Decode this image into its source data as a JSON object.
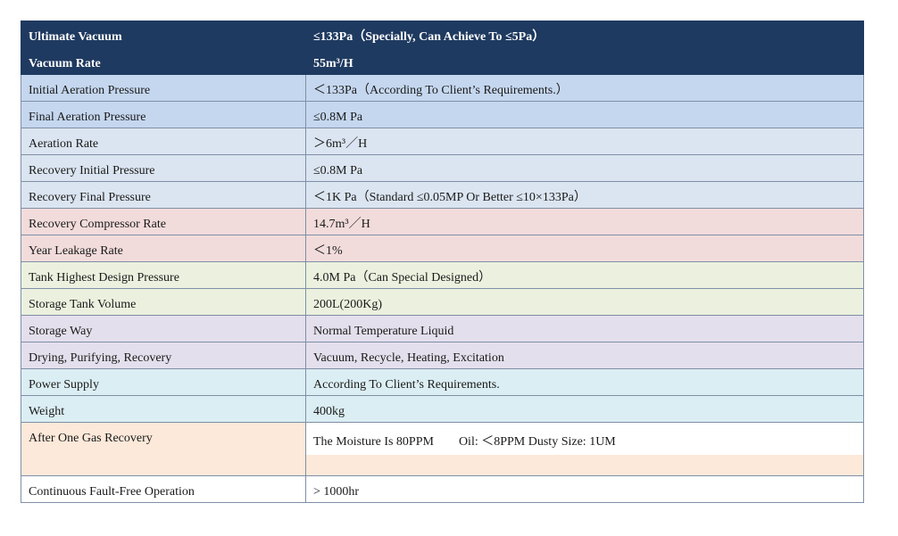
{
  "rows": [
    {
      "label": "Ultimate Vacuum",
      "value": "≤133Pa（Specially, Can Achieve To ≤5Pa）"
    },
    {
      "label": "Vacuum Rate",
      "value": "55m³/H"
    },
    {
      "label": "Initial Aeration Pressure",
      "value": "＜133Pa（According To Client’s Requirements.）"
    },
    {
      "label": "Final Aeration Pressure",
      "value": "≤0.8M Pa"
    },
    {
      "label": "Aeration Rate",
      "value": "＞6m³／H"
    },
    {
      "label": "Recovery Initial Pressure",
      "value": "≤0.8M Pa"
    },
    {
      "label": "Recovery  Final Pressure",
      "value": "＜1K Pa（Standard ≤0.05MP Or Better ≤10×133Pa）"
    },
    {
      "label": "Recovery Compressor Rate",
      "value": "14.7m³／H"
    },
    {
      "label": "Year Leakage Rate",
      "value": "＜1%"
    },
    {
      "label": "Tank Highest Design Pressure",
      "value": "4.0M Pa（Can Special Designed）"
    },
    {
      "label": "Storage Tank Volume",
      "value": "200L(200Kg)"
    },
    {
      "label": "Storage Way",
      "value": "Normal Temperature Liquid"
    },
    {
      "label": "Drying, Purifying, Recovery",
      "value": "Vacuum, Recycle, Heating, Excitation"
    },
    {
      "label": "Power Supply",
      "value": "According To Client’s Requirements."
    },
    {
      "label": "Weight",
      "value": "400kg"
    },
    {
      "label": "After One Gas Recovery",
      "value": "The Moisture Is 80PPM        Oil: ＜8PPM Dusty Size: 1UM"
    },
    {
      "label": "Continuous Fault-Free Operation",
      "value": "> 1000hr"
    }
  ]
}
